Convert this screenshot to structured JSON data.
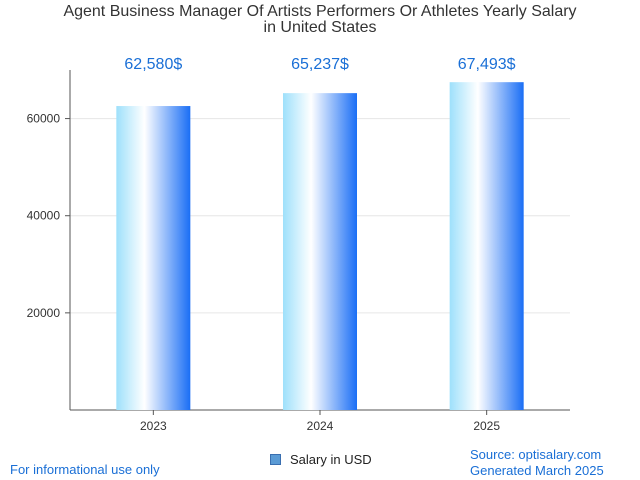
{
  "chart_data": {
    "type": "bar",
    "title_lines": [
      "Agent Business Manager Of Artists Performers Or Athletes Yearly Salary",
      "in United States"
    ],
    "categories": [
      "2023",
      "2024",
      "2025"
    ],
    "series": [
      {
        "name": "Salary in USD",
        "values": [
          62580,
          65237,
          67493
        ]
      }
    ],
    "value_labels": [
      "62,580$",
      "65,237$",
      "67,493$"
    ],
    "yticks": [
      20000,
      40000,
      60000
    ],
    "ytick_labels": [
      "20000",
      "40000",
      "60000"
    ],
    "ylim": [
      0,
      70000
    ],
    "grid": true,
    "legend_position": "bottom"
  },
  "footer": {
    "disclaimer": "For informational use only",
    "source": "Source: optisalary.com",
    "generated": "Generated March 2025"
  },
  "colors": {
    "value_label": "#1a6fd6",
    "bar_light": "#9ee0fb",
    "bar_white": "#ffffff",
    "bar_dark": "#1a6ef5",
    "grid": "#e6e6e6",
    "axis": "#555555"
  }
}
